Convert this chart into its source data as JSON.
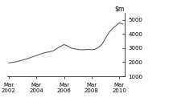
{
  "title": "",
  "ylim": [
    1000,
    5500
  ],
  "yticks": [
    1000,
    2000,
    3000,
    4000,
    5000
  ],
  "xtick_labels": [
    "Mar\n2002",
    "Mar\n2004",
    "Mar\n2006",
    "Mar\n2008",
    "Mar\n2010"
  ],
  "xtick_positions": [
    0,
    8,
    16,
    24,
    32
  ],
  "line_color": "#555555",
  "background_color": "#ffffff",
  "x": [
    0,
    1,
    2,
    3,
    4,
    5,
    6,
    7,
    8,
    9,
    10,
    11,
    12,
    13,
    14,
    15,
    16,
    17,
    18,
    19,
    20,
    21,
    22,
    23,
    24,
    25,
    26,
    27,
    28,
    29,
    30,
    31,
    32,
    33
  ],
  "y": [
    1950,
    1980,
    2020,
    2080,
    2150,
    2220,
    2300,
    2390,
    2470,
    2560,
    2640,
    2700,
    2740,
    2820,
    2980,
    3120,
    3250,
    3150,
    3000,
    2950,
    2900,
    2880,
    2890,
    2910,
    2880,
    2920,
    3050,
    3280,
    3700,
    4100,
    4380,
    4580,
    4780,
    4700
  ]
}
